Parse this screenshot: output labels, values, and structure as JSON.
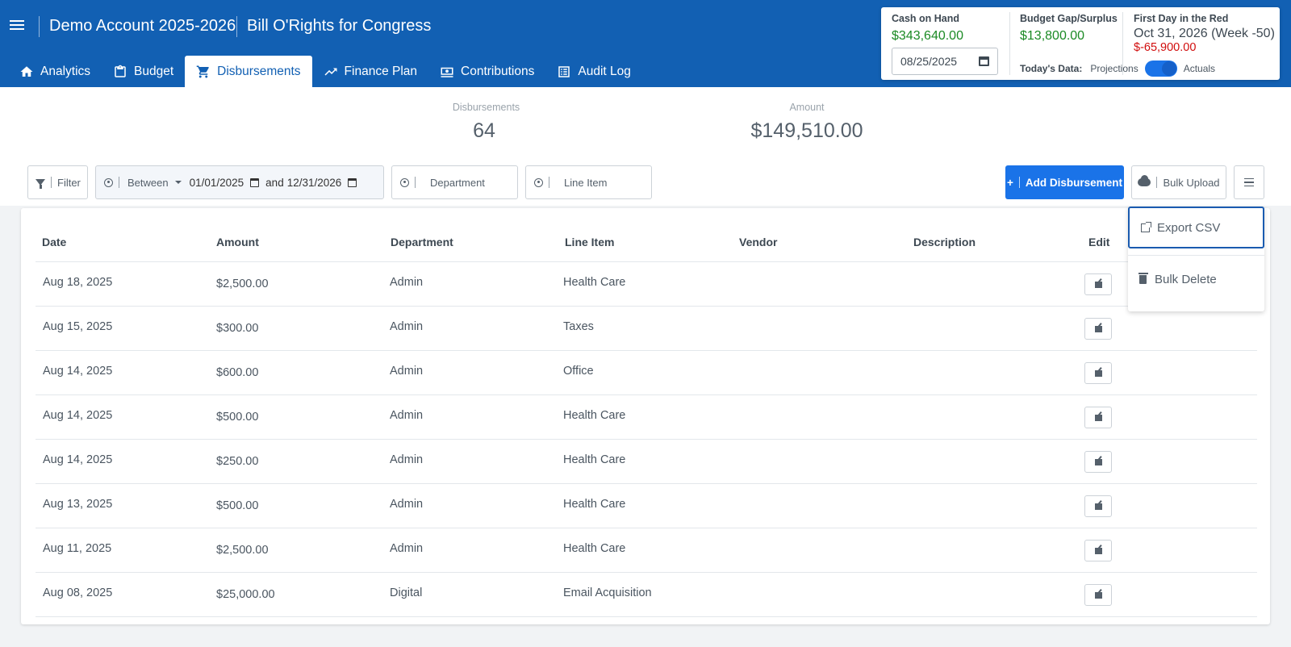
{
  "header": {
    "account": "Demo Account 2025-2026",
    "campaign": "Bill O'Rights for Congress",
    "tabs": [
      {
        "label": "Analytics",
        "icon": "home-icon"
      },
      {
        "label": "Budget",
        "icon": "clipboard-icon"
      },
      {
        "label": "Disbursements",
        "icon": "cart-icon",
        "active": true
      },
      {
        "label": "Finance Plan",
        "icon": "trend-icon"
      },
      {
        "label": "Contributions",
        "icon": "money-icon"
      },
      {
        "label": "Audit Log",
        "icon": "list-icon"
      }
    ]
  },
  "summary": {
    "cash_label": "Cash on Hand",
    "cash_value": "$343,640.00",
    "date_value": "08/25/2025",
    "gap_label": "Budget Gap/Surplus",
    "gap_value": "$13,800.00",
    "red_label": "First Day in the Red",
    "red_date": "Oct 31, 2026 (Week -50)",
    "red_value": "$-65,900.00",
    "todays_label": "Today's Data:",
    "projections": "Projections",
    "actuals": "Actuals"
  },
  "stats": {
    "count_label": "Disbursements",
    "count_value": "64",
    "amount_label": "Amount",
    "amount_value": "$149,510.00"
  },
  "filters": {
    "filter_label": "Filter",
    "between_label": "Between",
    "start_date": "01/01/2025",
    "and_label": "and",
    "end_date": "12/31/2026",
    "department_placeholder": "Department",
    "line_item_placeholder": "Line Item"
  },
  "actions": {
    "add_label": "Add Disbursement",
    "upload_label": "Bulk Upload"
  },
  "menu": {
    "export_label": "Export CSV",
    "delete_label": "Bulk Delete"
  },
  "table": {
    "columns": [
      "Date",
      "Amount",
      "Department",
      "Line Item",
      "Vendor",
      "Description",
      "Edit"
    ],
    "rows": [
      {
        "date": "Aug 18, 2025",
        "amount": "$2,500.00",
        "department": "Admin",
        "line_item": "Health Care"
      },
      {
        "date": "Aug 15, 2025",
        "amount": "$300.00",
        "department": "Admin",
        "line_item": "Taxes"
      },
      {
        "date": "Aug 14, 2025",
        "amount": "$600.00",
        "department": "Admin",
        "line_item": "Office"
      },
      {
        "date": "Aug 14, 2025",
        "amount": "$500.00",
        "department": "Admin",
        "line_item": "Health Care"
      },
      {
        "date": "Aug 14, 2025",
        "amount": "$250.00",
        "department": "Admin",
        "line_item": "Health Care"
      },
      {
        "date": "Aug 13, 2025",
        "amount": "$500.00",
        "department": "Admin",
        "line_item": "Health Care"
      },
      {
        "date": "Aug 11, 2025",
        "amount": "$2,500.00",
        "department": "Admin",
        "line_item": "Health Care"
      },
      {
        "date": "Aug 08, 2025",
        "amount": "$25,000.00",
        "department": "Digital",
        "line_item": "Email Acquisition"
      }
    ]
  },
  "colors": {
    "header_blue": "#1260b3",
    "primary_button": "#1a73e8",
    "positive": "#1b8a24",
    "negative": "#d10d0d"
  }
}
